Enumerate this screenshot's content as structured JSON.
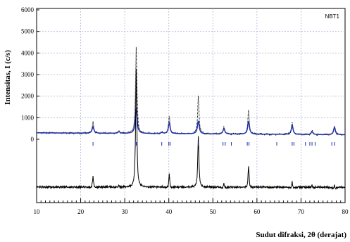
{
  "chart_data": {
    "type": "line",
    "sample_label": "NBT1",
    "xlabel": "Sudut difraksi, 2θ (derajat)",
    "ylabel": "Intensitas, I (c/s)",
    "xlim": [
      10,
      80
    ],
    "ylim": [
      0,
      6000
    ],
    "x_ticks": [
      10,
      20,
      30,
      40,
      50,
      60,
      70,
      80
    ],
    "y_ticks": [
      0,
      1000,
      2000,
      3000,
      4000,
      5000,
      6000
    ],
    "grid": "dashed vertical and horizontal",
    "colors": {
      "observed": "#000000",
      "calculated": "#1f2fa8",
      "difference": "#000000",
      "reflections": "#1f2fa8",
      "grid": "#b4b4dc"
    },
    "background": 300,
    "peaks": [
      {
        "x": 22.8,
        "observed": 850,
        "calculated": 600
      },
      {
        "x": 28.7,
        "observed": 420,
        "calculated": 380
      },
      {
        "x": 32.6,
        "observed": 4300,
        "calculated": 1500
      },
      {
        "x": 38.4,
        "observed": 370,
        "calculated": 350
      },
      {
        "x": 40.1,
        "observed": 1100,
        "calculated": 800
      },
      {
        "x": 46.7,
        "observed": 2100,
        "calculated": 900
      },
      {
        "x": 52.5,
        "observed": 650,
        "calculated": 560
      },
      {
        "x": 58.1,
        "observed": 1400,
        "calculated": 900
      },
      {
        "x": 68.0,
        "observed": 850,
        "calculated": 720
      },
      {
        "x": 72.5,
        "observed": 480,
        "calculated": 440
      },
      {
        "x": 77.6,
        "observed": 700,
        "calculated": 650
      }
    ],
    "reflections": [
      22.8,
      32.4,
      32.6,
      38.4,
      40.0,
      40.3,
      46.7,
      52.3,
      52.8,
      54.2,
      57.8,
      58.2,
      64.5,
      68.0,
      68.4,
      71.0,
      72.0,
      72.5,
      73.2,
      77.0,
      77.6
    ]
  }
}
